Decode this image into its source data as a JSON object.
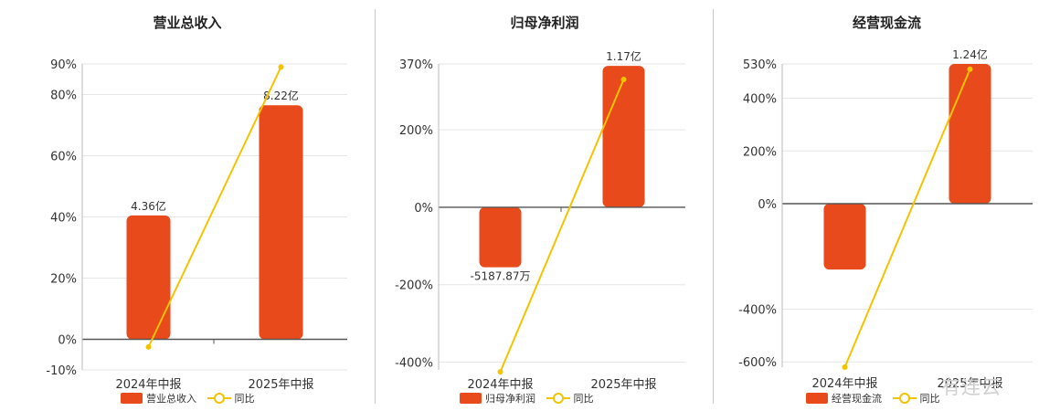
{
  "chart_data": [
    {
      "type": "bar",
      "title": "营业总收入",
      "categories": [
        "2024年中报",
        "2025年中报"
      ],
      "bar_series": {
        "name": "营业总收入",
        "values": [
          40.5,
          76.5
        ],
        "labels": [
          "4.36亿",
          "8.22亿"
        ]
      },
      "line_series": {
        "name": "同比",
        "values": [
          -2.5,
          89
        ]
      },
      "y_ticks": [
        "90%",
        "80%",
        "60%",
        "40%",
        "20%",
        "0%",
        "-10%"
      ],
      "y_tick_values": [
        90,
        80,
        60,
        40,
        20,
        0,
        -10
      ],
      "ylim": [
        -10,
        90
      ],
      "grid": true
    },
    {
      "type": "bar",
      "title": "归母净利润",
      "categories": [
        "2024年中报",
        "2025年中报"
      ],
      "bar_series": {
        "name": "归母净利润",
        "values": [
          -155,
          365
        ],
        "labels": [
          "-5187.87万",
          "1.17亿"
        ]
      },
      "line_series": {
        "name": "同比",
        "values": [
          -425,
          330
        ]
      },
      "y_ticks": [
        "370%",
        "200%",
        "0%",
        "-200%",
        "-400%"
      ],
      "y_tick_values": [
        370,
        200,
        0,
        -200,
        -400
      ],
      "ylim": [
        -420,
        370
      ],
      "grid": true
    },
    {
      "type": "bar",
      "title": "经营现金流",
      "categories": [
        "2024年中报",
        "2025年中报"
      ],
      "bar_series": {
        "name": "经营现金流",
        "values": [
          -250,
          530
        ],
        "labels": [
          "",
          "1.24亿"
        ]
      },
      "line_series": {
        "name": "同比",
        "values": [
          -620,
          510
        ]
      },
      "y_ticks": [
        "530%",
        "400%",
        "200%",
        "0%",
        "-400%",
        "-600%"
      ],
      "y_tick_values": [
        530,
        400,
        200,
        0,
        -400,
        -600
      ],
      "ylim": [
        -620,
        530
      ],
      "grid": true
    }
  ],
  "colors": {
    "bar": "#e84a1b",
    "line": "#f2c400",
    "grid": "#e6e6e6",
    "axis": "#555555"
  },
  "watermark": "有连云"
}
